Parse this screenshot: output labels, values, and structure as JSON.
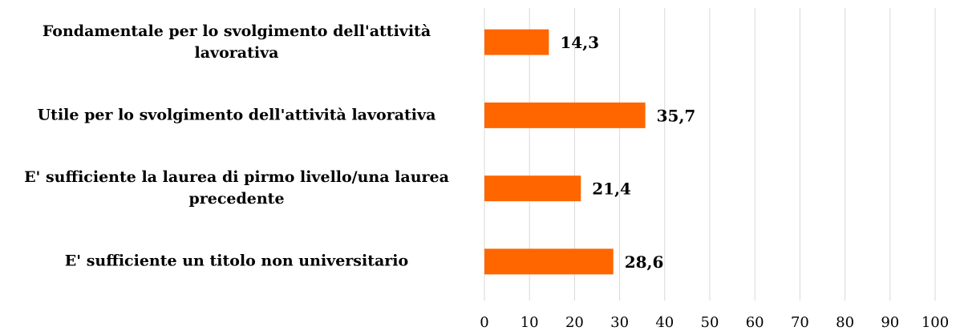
{
  "chart_data": {
    "type": "barh",
    "categories": [
      "Fondamentale per lo svolgimento dell'attività lavorativa",
      "Utile per lo svolgimento dell'attività lavorativa",
      "E' sufficiente la laurea di pirmo livello/una laurea precedente",
      "E' sufficiente un titolo non universitario"
    ],
    "values": [
      14.3,
      35.7,
      21.4,
      28.6
    ],
    "value_labels": [
      "14,3",
      "35,7",
      "21,4",
      "28,6"
    ],
    "color": "#ff6600",
    "xlim": [
      0,
      100
    ],
    "xticks": [
      0,
      10,
      20,
      30,
      40,
      50,
      60,
      70,
      80,
      90,
      100
    ],
    "grid": true
  }
}
